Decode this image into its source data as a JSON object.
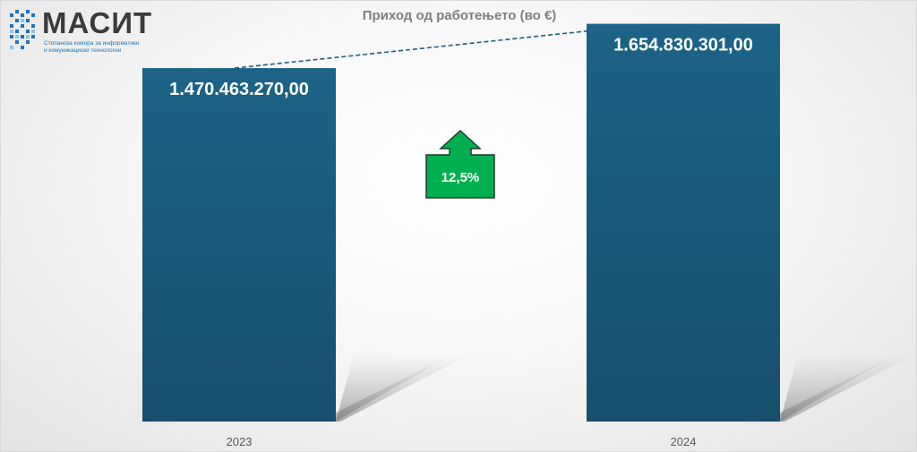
{
  "logo": {
    "word": "МАСИТ",
    "subtitle_line1": "Стопанска комора за информатики",
    "subtitle_line2": "и комуникациски технологии"
  },
  "chart_data": {
    "type": "bar",
    "title": "Приход од работењето (во €)",
    "categories": [
      "2023",
      "2024"
    ],
    "values": [
      1470463270.0,
      1654830301.0
    ],
    "value_labels": [
      "1.470.463.270,00",
      "1.654.830.301,00"
    ],
    "ylim": [
      0,
      1750000000
    ],
    "grid": false,
    "legend": "none",
    "bar_color": "#1b5f82",
    "growth_label": "12,5%",
    "growth_color": "#00b050"
  }
}
